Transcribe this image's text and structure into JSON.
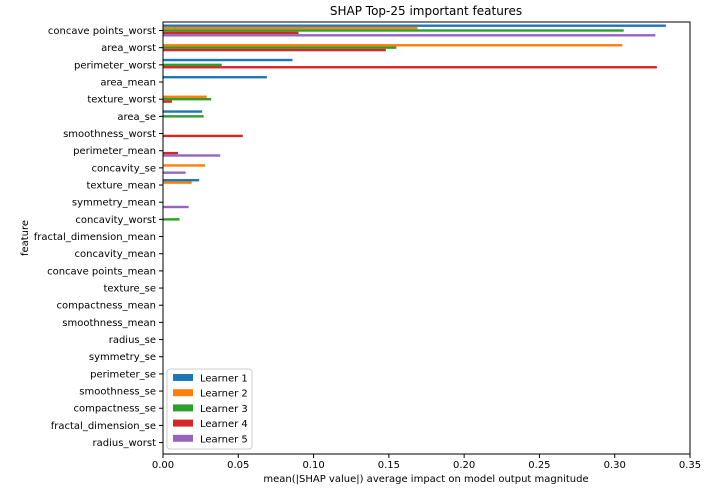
{
  "chart_data": {
    "type": "bar",
    "orientation": "horizontal",
    "title": "SHAP Top-25 important features",
    "xlabel": "mean(|SHAP value|) average impact on model output magnitude",
    "ylabel": "feature",
    "xlim": [
      0,
      0.35
    ],
    "xticks": [
      "0.00",
      "0.05",
      "0.10",
      "0.15",
      "0.20",
      "0.25",
      "0.30",
      "0.35"
    ],
    "grid": false,
    "legend_position": "lower-left",
    "categories": [
      "concave points_worst",
      "area_worst",
      "perimeter_worst",
      "area_mean",
      "texture_worst",
      "area_se",
      "smoothness_worst",
      "perimeter_mean",
      "concavity_se",
      "texture_mean",
      "symmetry_mean",
      "concavity_worst",
      "fractal_dimension_mean",
      "concavity_mean",
      "concave points_mean",
      "texture_se",
      "compactness_mean",
      "smoothness_mean",
      "radius_se",
      "symmetry_se",
      "perimeter_se",
      "smoothness_se",
      "compactness_se",
      "fractal_dimension_se",
      "radius_worst"
    ],
    "series": [
      {
        "name": "Learner 1",
        "color": "#1f77b4",
        "values": [
          0.334,
          0.0,
          0.086,
          0.069,
          0.0,
          0.026,
          0.0,
          0.0,
          0.0,
          0.024,
          0.0,
          0.0,
          0.0,
          0.0,
          0.0,
          0.0,
          0.0,
          0.0,
          0.0,
          0.0,
          0.0,
          0.0,
          0.0,
          0.0,
          0.0
        ]
      },
      {
        "name": "Learner 2",
        "color": "#ff7f0e",
        "values": [
          0.169,
          0.305,
          0.0,
          0.0,
          0.029,
          0.0,
          0.0,
          0.0,
          0.028,
          0.019,
          0.0,
          0.0,
          0.0,
          0.0,
          0.0,
          0.0,
          0.0,
          0.0,
          0.0,
          0.0,
          0.0,
          0.0,
          0.0,
          0.0,
          0.0
        ]
      },
      {
        "name": "Learner 3",
        "color": "#2ca02c",
        "values": [
          0.306,
          0.155,
          0.039,
          0.0,
          0.032,
          0.027,
          0.0,
          0.0,
          0.0,
          0.0,
          0.0,
          0.011,
          0.0,
          0.0,
          0.0,
          0.0,
          0.0,
          0.0,
          0.0,
          0.0,
          0.0,
          0.0,
          0.0,
          0.0,
          0.0
        ]
      },
      {
        "name": "Learner 4",
        "color": "#d62728",
        "values": [
          0.09,
          0.148,
          0.328,
          0.0,
          0.006,
          0.0,
          0.053,
          0.01,
          0.0,
          0.0,
          0.0,
          0.0,
          0.0,
          0.0,
          0.0,
          0.0,
          0.0,
          0.0,
          0.0,
          0.0,
          0.0,
          0.0,
          0.0,
          0.0,
          0.0
        ]
      },
      {
        "name": "Learner 5",
        "color": "#9467bd",
        "values": [
          0.327,
          0.0,
          0.0,
          0.0,
          0.0,
          0.0,
          0.0,
          0.038,
          0.015,
          0.0,
          0.017,
          0.0,
          0.0,
          0.0,
          0.0,
          0.0,
          0.0,
          0.0,
          0.0,
          0.0,
          0.0,
          0.0,
          0.0,
          0.0,
          0.0
        ]
      }
    ]
  }
}
